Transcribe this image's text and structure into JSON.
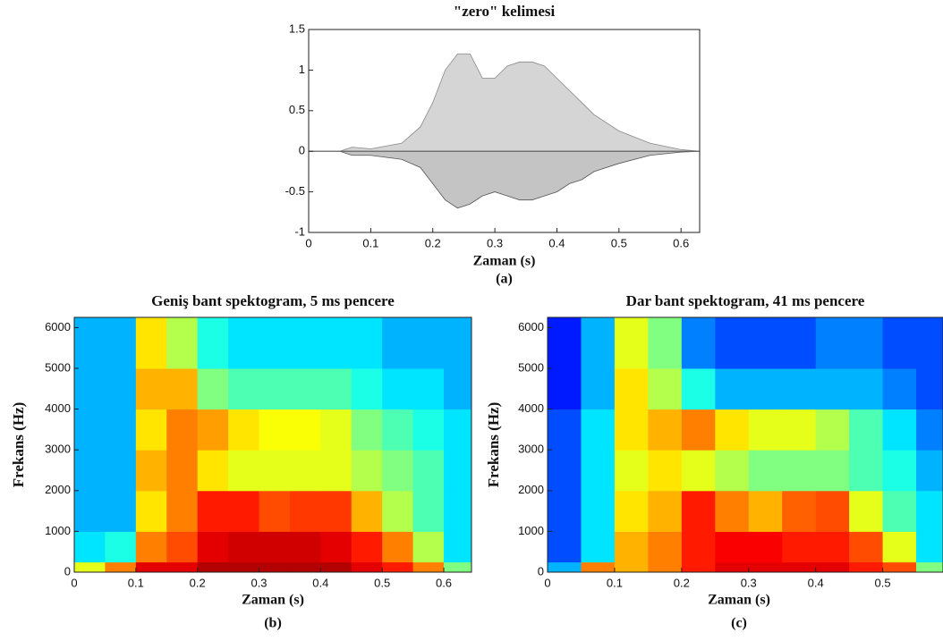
{
  "chart_data": [
    {
      "type": "area",
      "title": "\"zero\" kelimesi",
      "xlabel": "Zaman (s)",
      "caption": "(a)",
      "x": [
        0,
        0.05,
        0.07,
        0.1,
        0.15,
        0.18,
        0.2,
        0.22,
        0.24,
        0.26,
        0.28,
        0.3,
        0.32,
        0.34,
        0.36,
        0.38,
        0.4,
        0.42,
        0.44,
        0.46,
        0.5,
        0.55,
        0.6,
        0.63
      ],
      "series": [
        {
          "color": "#888888",
          "values": [
            0,
            0,
            0.05,
            0.03,
            0.1,
            0.3,
            0.6,
            1.0,
            1.2,
            1.2,
            0.9,
            0.9,
            1.05,
            1.1,
            1.1,
            1.05,
            0.9,
            0.75,
            0.6,
            0.45,
            0.25,
            0.1,
            0.02,
            0
          ]
        },
        {
          "color": "#555555",
          "values": [
            0,
            0,
            -0.05,
            -0.05,
            -0.1,
            -0.2,
            -0.4,
            -0.6,
            -0.7,
            -0.65,
            -0.55,
            -0.5,
            -0.55,
            -0.6,
            -0.6,
            -0.55,
            -0.5,
            -0.4,
            -0.35,
            -0.25,
            -0.15,
            -0.05,
            -0.01,
            0
          ]
        }
      ],
      "xlim": [
        0,
        0.63
      ],
      "ylim": [
        -1,
        1.5
      ],
      "xticks": [
        0,
        0.1,
        0.2,
        0.3,
        0.4,
        0.5,
        0.6
      ],
      "yticks": [
        -1,
        -0.5,
        0,
        0.5,
        1,
        1.5
      ]
    },
    {
      "type": "heatmap",
      "title": "Geniş bant spektogram, 5 ms pencere",
      "xlabel": "Zaman (s)",
      "ylabel": "Frekans (Hz)",
      "caption": "(b)",
      "time_bins": [
        0,
        0.05,
        0.1,
        0.15,
        0.2,
        0.25,
        0.3,
        0.35,
        0.4,
        0.45,
        0.5,
        0.55,
        0.6,
        0.645
      ],
      "freq_bins": [
        0,
        250,
        1000,
        2000,
        3000,
        4000,
        5000,
        6250
      ],
      "z": [
        [
          0.6,
          0.75,
          0.9,
          0.9,
          0.95,
          0.95,
          0.95,
          0.95,
          0.95,
          0.9,
          0.85,
          0.75,
          0.5
        ],
        [
          0.35,
          0.4,
          0.75,
          0.8,
          0.9,
          0.92,
          0.92,
          0.92,
          0.9,
          0.85,
          0.75,
          0.55,
          0.35
        ],
        [
          0.3,
          0.3,
          0.65,
          0.75,
          0.85,
          0.85,
          0.8,
          0.82,
          0.82,
          0.7,
          0.55,
          0.45,
          0.35
        ],
        [
          0.3,
          0.3,
          0.7,
          0.75,
          0.65,
          0.6,
          0.6,
          0.6,
          0.6,
          0.55,
          0.5,
          0.45,
          0.35
        ],
        [
          0.3,
          0.3,
          0.65,
          0.75,
          0.72,
          0.65,
          0.62,
          0.62,
          0.6,
          0.5,
          0.45,
          0.4,
          0.35
        ],
        [
          0.3,
          0.3,
          0.7,
          0.7,
          0.5,
          0.45,
          0.45,
          0.45,
          0.45,
          0.4,
          0.35,
          0.35,
          0.3
        ],
        [
          0.3,
          0.3,
          0.65,
          0.55,
          0.4,
          0.35,
          0.35,
          0.35,
          0.35,
          0.35,
          0.3,
          0.3,
          0.3
        ]
      ],
      "xlim": [
        0,
        0.645
      ],
      "ylim": [
        0,
        6250
      ],
      "xticks": [
        0,
        0.1,
        0.2,
        0.3,
        0.4,
        0.5,
        0.6
      ],
      "yticks": [
        0,
        1000,
        2000,
        3000,
        4000,
        5000,
        6000
      ]
    },
    {
      "type": "heatmap",
      "title": "Dar bant spektogram, 41 ms pencere",
      "xlabel": "Zaman (s)",
      "ylabel": "Frekans (Hz)",
      "caption": "(c)",
      "time_bins": [
        0,
        0.05,
        0.1,
        0.15,
        0.2,
        0.25,
        0.3,
        0.35,
        0.4,
        0.45,
        0.5,
        0.55,
        0.59
      ],
      "freq_bins": [
        0,
        250,
        1000,
        2000,
        3000,
        4000,
        5000,
        6250
      ],
      "z": [
        [
          0.3,
          0.75,
          0.7,
          0.75,
          0.85,
          0.9,
          0.9,
          0.9,
          0.9,
          0.85,
          0.8,
          0.5
        ],
        [
          0.2,
          0.35,
          0.7,
          0.75,
          0.85,
          0.88,
          0.88,
          0.85,
          0.85,
          0.8,
          0.6,
          0.35
        ],
        [
          0.2,
          0.35,
          0.65,
          0.7,
          0.85,
          0.75,
          0.7,
          0.78,
          0.8,
          0.6,
          0.45,
          0.35
        ],
        [
          0.2,
          0.35,
          0.6,
          0.65,
          0.6,
          0.55,
          0.5,
          0.5,
          0.5,
          0.45,
          0.4,
          0.3
        ],
        [
          0.2,
          0.35,
          0.65,
          0.7,
          0.75,
          0.65,
          0.6,
          0.6,
          0.55,
          0.45,
          0.35,
          0.25
        ],
        [
          0.15,
          0.3,
          0.65,
          0.55,
          0.4,
          0.3,
          0.3,
          0.3,
          0.3,
          0.3,
          0.25,
          0.2
        ],
        [
          0.15,
          0.3,
          0.6,
          0.5,
          0.25,
          0.2,
          0.2,
          0.2,
          0.25,
          0.25,
          0.2,
          0.2
        ]
      ],
      "xlim": [
        0,
        0.59
      ],
      "ylim": [
        0,
        6250
      ],
      "xticks": [
        0,
        0.1,
        0.2,
        0.3,
        0.4,
        0.5
      ],
      "yticks": [
        0,
        1000,
        2000,
        3000,
        4000,
        5000,
        6000
      ]
    }
  ]
}
